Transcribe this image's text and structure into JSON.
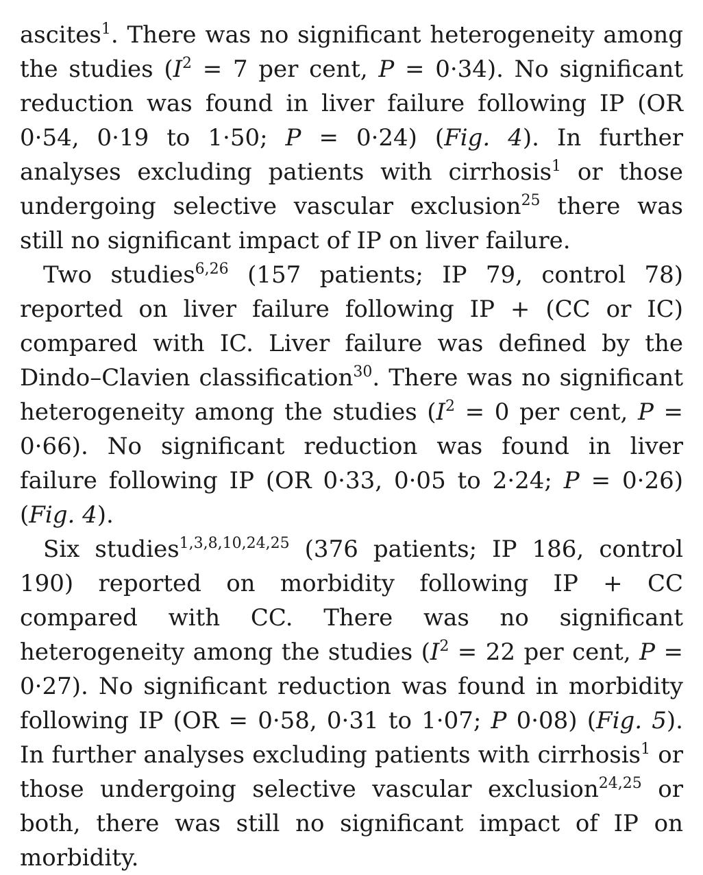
{
  "paragraphs": [
    {
      "indent": false,
      "segments": [
        {
          "t": "ascites"
        },
        {
          "s": "1"
        },
        {
          "t": ". There was no significant heterogeneity among the studies ("
        },
        {
          "i": "I"
        },
        {
          "s": "2"
        },
        {
          "t": " = 7 per cent, "
        },
        {
          "i": "P"
        },
        {
          "t": " = 0·34). No significant reduction was found in liver failure following IP (OR 0·54, 0·19 to 1·50; "
        },
        {
          "i": "P"
        },
        {
          "t": " = 0·24) ("
        },
        {
          "i": "Fig."
        },
        {
          "t": " "
        },
        {
          "i": "4"
        },
        {
          "t": "). In further analyses excluding patients with cirrhosis"
        },
        {
          "s": "1"
        },
        {
          "t": " or those undergoing selective vascular exclusion"
        },
        {
          "s": "25"
        },
        {
          "t": " there was still no significant impact of IP on liver failure."
        }
      ]
    },
    {
      "indent": true,
      "segments": [
        {
          "t": "Two studies"
        },
        {
          "s": "6,26"
        },
        {
          "t": " (157 patients; IP 79, control 78) reported on liver failure following IP + (CC or IC) compared with IC. Liver failure was defined by the Dindo–Clavien classification"
        },
        {
          "s": "30"
        },
        {
          "t": ". There was no significant heterogeneity among the studies ("
        },
        {
          "i": "I"
        },
        {
          "s": "2"
        },
        {
          "t": " = 0 per cent, "
        },
        {
          "i": "P"
        },
        {
          "t": " = 0·66). No significant reduction was found in liver failure following IP (OR 0·33, 0·05 to 2·24; "
        },
        {
          "i": "P"
        },
        {
          "t": " = 0·26) ("
        },
        {
          "i": "Fig."
        },
        {
          "t": " "
        },
        {
          "i": "4"
        },
        {
          "t": ")."
        }
      ]
    },
    {
      "indent": true,
      "segments": [
        {
          "t": "Six studies"
        },
        {
          "s": "1,3,8,10,24,25"
        },
        {
          "t": " (376 patients; IP 186, control 190) reported on morbidity following IP + CC compared with CC. There was no significant heterogeneity among the studies ("
        },
        {
          "i": "I"
        },
        {
          "s": "2"
        },
        {
          "t": " = 22 per cent, "
        },
        {
          "i": "P"
        },
        {
          "t": " = 0·27). No significant reduction was found in morbidity following IP (OR = 0·58, 0·31 to 1·07; "
        },
        {
          "i": "P"
        },
        {
          "t": " 0·08) ("
        },
        {
          "i": "Fig."
        },
        {
          "t": " "
        },
        {
          "i": "5"
        },
        {
          "t": "). In further analyses excluding patients with cirrhosis"
        },
        {
          "s": "1"
        },
        {
          "t": " or those undergoing selective vascular exclusion"
        },
        {
          "s": "24,25"
        },
        {
          "t": " or both, there was still no significant impact of IP on morbidity."
        }
      ]
    }
  ]
}
